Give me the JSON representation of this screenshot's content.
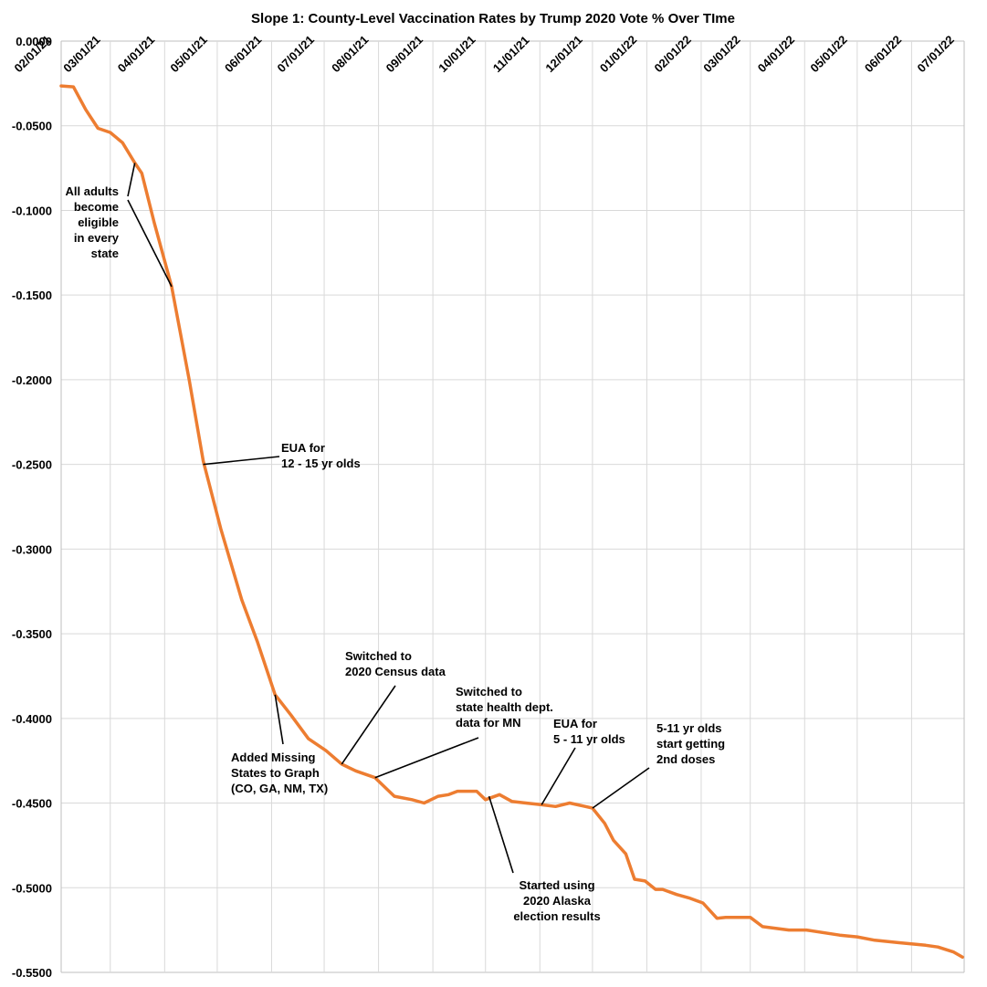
{
  "chart_data": {
    "type": "line",
    "title": "Slope 1: County-Level Vaccination Rates by Trump 2020 Vote % Over TIme",
    "xlabel": "",
    "ylabel": "",
    "y_range": [
      -0.55,
      0.0
    ],
    "y_ticks": [
      "0.0000",
      "-0.0500",
      "-0.1000",
      "-0.1500",
      "-0.2000",
      "-0.2500",
      "-0.3000",
      "-0.3500",
      "-0.4000",
      "-0.4500",
      "-0.5000",
      "-0.5500"
    ],
    "x_range": [
      "2021-02-01",
      "2022-07-01"
    ],
    "x_tick_labels": [
      "02/01/21",
      "03/01/21",
      "04/01/21",
      "05/01/21",
      "06/01/21",
      "07/01/21",
      "08/01/21",
      "09/01/21",
      "10/01/21",
      "11/01/21",
      "12/01/21",
      "01/01/22",
      "02/01/22",
      "03/01/22",
      "04/01/22",
      "05/01/22",
      "06/01/22",
      "07/01/22"
    ],
    "grid": true,
    "legend": "none",
    "line_color": "#ed7d31",
    "series": [
      {
        "points": [
          [
            "2021-02-01",
            -0.0265
          ],
          [
            "2021-02-08",
            -0.027
          ],
          [
            "2021-02-15",
            -0.0405
          ],
          [
            "2021-02-22",
            -0.0515
          ],
          [
            "2021-03-01",
            -0.054
          ],
          [
            "2021-03-08",
            -0.06
          ],
          [
            "2021-03-15",
            -0.072
          ],
          [
            "2021-03-19",
            -0.078
          ],
          [
            "2021-03-26",
            -0.107
          ],
          [
            "2021-04-05",
            -0.145
          ],
          [
            "2021-04-15",
            -0.2
          ],
          [
            "2021-04-23",
            -0.248
          ],
          [
            "2021-05-03",
            -0.288
          ],
          [
            "2021-05-15",
            -0.33
          ],
          [
            "2021-05-24",
            -0.355
          ],
          [
            "2021-06-03",
            -0.386
          ],
          [
            "2021-06-12",
            -0.398
          ],
          [
            "2021-06-22",
            -0.412
          ],
          [
            "2021-07-02",
            -0.419
          ],
          [
            "2021-07-11",
            -0.427
          ],
          [
            "2021-07-19",
            -0.431
          ],
          [
            "2021-07-30",
            -0.435
          ],
          [
            "2021-08-10",
            -0.446
          ],
          [
            "2021-08-20",
            -0.448
          ],
          [
            "2021-08-27",
            -0.45
          ],
          [
            "2021-08-31",
            -0.448
          ],
          [
            "2021-09-04",
            -0.446
          ],
          [
            "2021-09-10",
            -0.445
          ],
          [
            "2021-09-15",
            -0.443
          ],
          [
            "2021-09-26",
            -0.443
          ],
          [
            "2021-10-01",
            -0.448
          ],
          [
            "2021-10-09",
            -0.445
          ],
          [
            "2021-10-16",
            -0.449
          ],
          [
            "2021-10-24",
            -0.45
          ],
          [
            "2021-11-02",
            -0.451
          ],
          [
            "2021-11-10",
            -0.452
          ],
          [
            "2021-11-18",
            -0.45
          ],
          [
            "2021-11-27",
            -0.452
          ],
          [
            "2021-12-01",
            -0.453
          ],
          [
            "2021-12-08",
            -0.462
          ],
          [
            "2021-12-13",
            -0.472
          ],
          [
            "2021-12-20",
            -0.48
          ],
          [
            "2021-12-25",
            -0.495
          ],
          [
            "2021-12-31",
            -0.496
          ],
          [
            "2022-01-06",
            -0.501
          ],
          [
            "2022-01-10",
            -0.501
          ],
          [
            "2022-01-18",
            -0.504
          ],
          [
            "2022-01-25",
            -0.506
          ],
          [
            "2022-02-02",
            -0.509
          ],
          [
            "2022-02-10",
            -0.518
          ],
          [
            "2022-02-15",
            -0.5175
          ],
          [
            "2022-02-22",
            -0.5175
          ],
          [
            "2022-03-01",
            -0.5175
          ],
          [
            "2022-03-08",
            -0.523
          ],
          [
            "2022-03-23",
            -0.525
          ],
          [
            "2022-04-02",
            -0.525
          ],
          [
            "2022-04-21",
            -0.528
          ],
          [
            "2022-05-01",
            -0.529
          ],
          [
            "2022-05-11",
            -0.531
          ],
          [
            "2022-05-25",
            -0.5325
          ],
          [
            "2022-06-09",
            -0.534
          ],
          [
            "2022-06-16",
            -0.535
          ],
          [
            "2022-06-25",
            -0.538
          ],
          [
            "2022-06-30",
            -0.541
          ]
        ]
      }
    ],
    "annotations": [
      {
        "lines": [
          "All adults",
          "become",
          "eligible",
          "in every",
          "state"
        ],
        "pointers": [
          [
            "2021-03-15",
            -0.072
          ],
          [
            "2021-04-05",
            -0.145
          ]
        ]
      },
      {
        "lines": [
          "EUA for",
          "12 - 15 yr olds"
        ],
        "pointers": [
          [
            "2021-04-23",
            -0.25
          ]
        ]
      },
      {
        "lines": [
          "Added Missing",
          "States to Graph",
          "(CO, GA, NM, TX)"
        ],
        "pointers": [
          [
            "2021-06-03",
            -0.386
          ]
        ]
      },
      {
        "lines": [
          "Switched to",
          "2020 Census data"
        ],
        "pointers": [
          [
            "2021-07-11",
            -0.427
          ]
        ]
      },
      {
        "lines": [
          "Switched to",
          "state health dept.",
          "data for MN"
        ],
        "pointers": [
          [
            "2021-07-30",
            -0.435
          ]
        ]
      },
      {
        "lines": [
          "EUA for",
          "5 - 11 yr olds"
        ],
        "pointers": [
          [
            "2021-11-02",
            -0.451
          ]
        ]
      },
      {
        "lines": [
          "5-11 yr olds",
          "start getting",
          "2nd doses"
        ],
        "pointers": [
          [
            "2021-12-01",
            -0.453
          ]
        ]
      },
      {
        "lines": [
          "Started using",
          "2020 Alaska",
          "election results"
        ],
        "pointers": [
          [
            "2021-10-03",
            -0.446
          ]
        ]
      }
    ]
  }
}
